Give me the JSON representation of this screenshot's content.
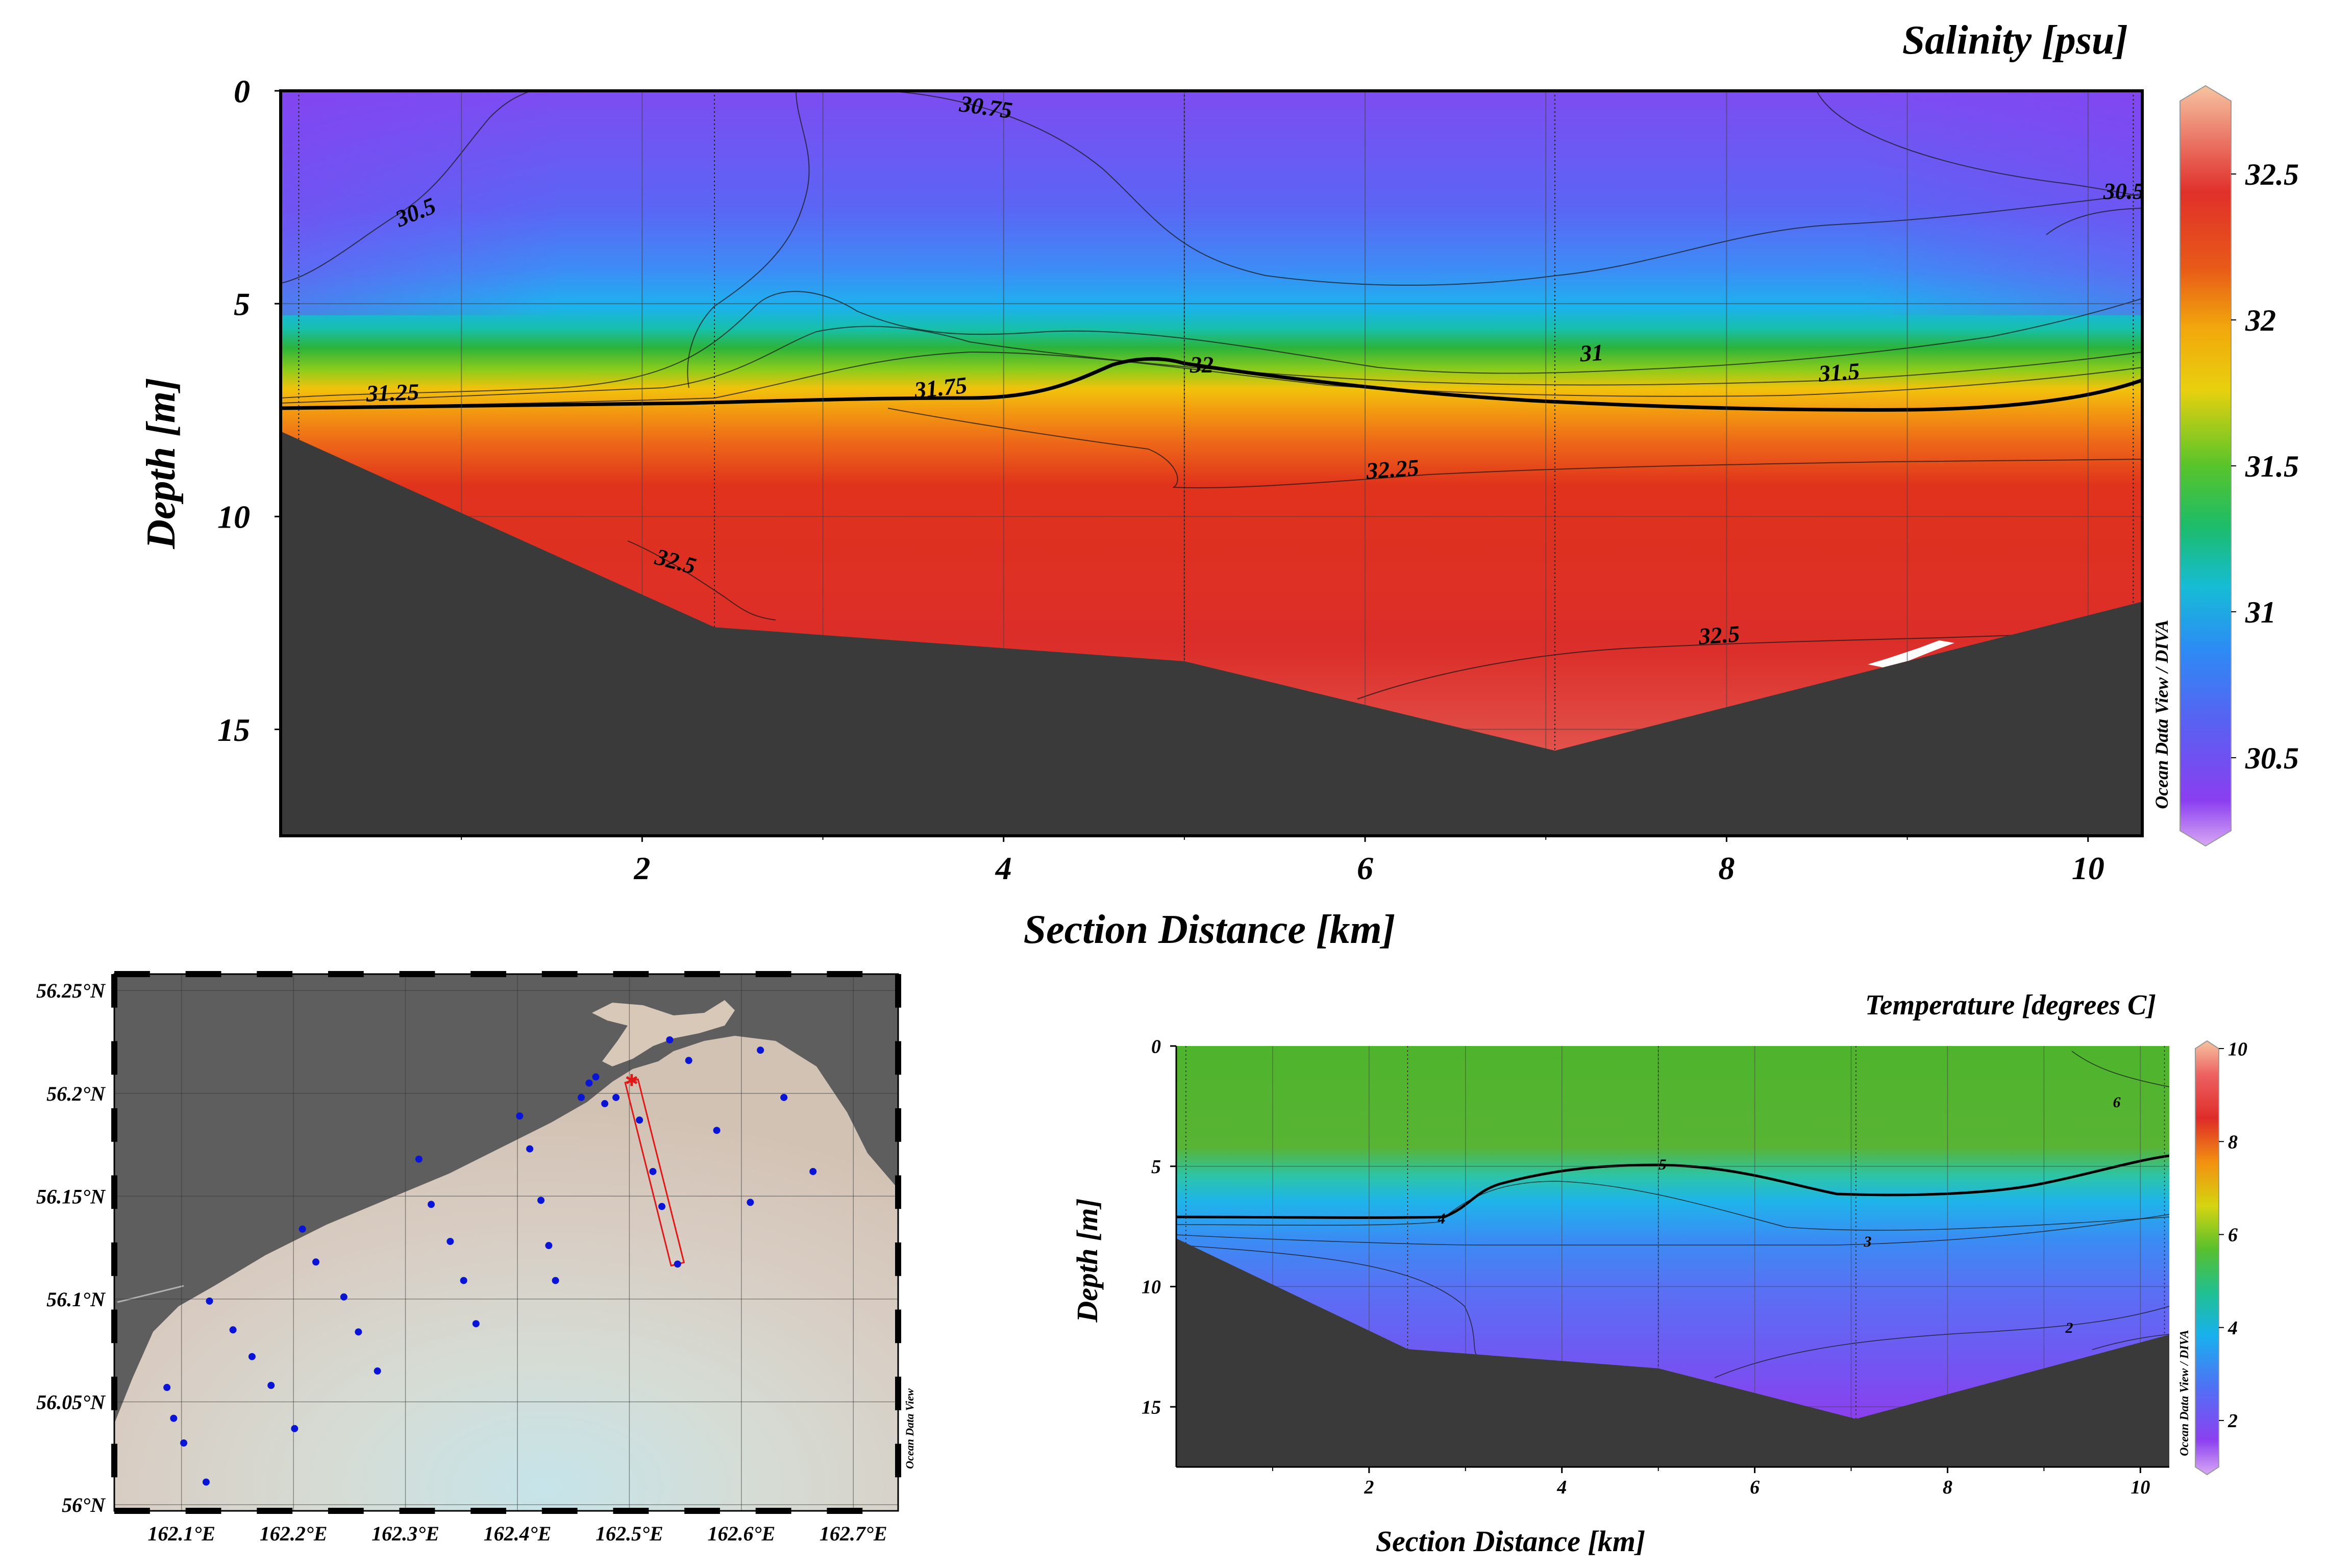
{
  "colors": {
    "seafloor": "#3a3a3a",
    "grid": "#333333",
    "stations": "#0a14d6",
    "section_track": "#e01818",
    "land": "#5e5e5e",
    "water_light": "#d8d0c8"
  },
  "watermark": "Ocean Data View / DIVA",
  "map_watermark": "Ocean Data View",
  "chart_data": [
    {
      "id": "salinity",
      "type": "heatmap",
      "title": "Salinity [psu]",
      "xlabel": "Section Distance [km]",
      "ylabel": "Depth [m]",
      "xlim": [
        0,
        10.3
      ],
      "ylim": [
        17.5,
        0
      ],
      "x_ticks": [
        "2",
        "4",
        "6",
        "8",
        "10"
      ],
      "y_ticks": [
        "0",
        "5",
        "10",
        "15"
      ],
      "colorbar_ticks": [
        "32.5",
        "32",
        "31.5",
        "31",
        "30.5"
      ],
      "colorbar_range": [
        30.25,
        32.75
      ],
      "contour_labels": [
        "30.5",
        "30.75",
        "30.5",
        "31.25",
        "31.75",
        "32",
        "31",
        "31.5",
        "32.25",
        "32.5",
        "32.5"
      ],
      "station_distances_km": [
        0.1,
        2.4,
        5.0,
        7.05,
        10.25
      ],
      "bottom_profile": {
        "x": [
          0,
          2.4,
          5.0,
          7.05,
          10.3
        ],
        "depth": [
          8.0,
          12.6,
          13.4,
          15.5,
          12.0
        ]
      }
    },
    {
      "id": "temperature",
      "type": "heatmap",
      "title": "Temperature [degrees C]",
      "xlabel": "Section Distance [km]",
      "ylabel": "Depth [m]",
      "xlim": [
        0,
        10.3
      ],
      "ylim": [
        17.5,
        0
      ],
      "x_ticks": [
        "2",
        "4",
        "6",
        "8",
        "10"
      ],
      "y_ticks": [
        "0",
        "5",
        "10",
        "15"
      ],
      "colorbar_ticks": [
        "10",
        "8",
        "6",
        "4",
        "2"
      ],
      "colorbar_range": [
        1,
        10
      ],
      "contour_labels": [
        "6",
        "5",
        "4",
        "3",
        "2"
      ],
      "station_distances_km": [
        0.1,
        2.4,
        5.0,
        7.05,
        10.25
      ],
      "bottom_profile": {
        "x": [
          0,
          2.4,
          5.0,
          7.05,
          10.3
        ],
        "depth": [
          8.0,
          12.6,
          13.4,
          15.5,
          12.0
        ]
      }
    },
    {
      "id": "station_map",
      "type": "scatter",
      "lon_ticks": [
        "162.1°E",
        "162.2°E",
        "162.3°E",
        "162.4°E",
        "162.5°E",
        "162.6°E",
        "162.7°E"
      ],
      "lat_ticks": [
        "56.25°N",
        "56.2°N",
        "56.15°N",
        "56.1°N",
        "56.05°N",
        "56°N"
      ],
      "lon_range": [
        162.04,
        162.74
      ],
      "lat_range": [
        55.997,
        56.258
      ],
      "stations": [
        {
          "lon": 162.087,
          "lat": 56.057
        },
        {
          "lon": 162.093,
          "lat": 56.042
        },
        {
          "lon": 162.102,
          "lat": 56.03
        },
        {
          "lon": 162.122,
          "lat": 56.011
        },
        {
          "lon": 162.125,
          "lat": 56.099
        },
        {
          "lon": 162.146,
          "lat": 56.085
        },
        {
          "lon": 162.163,
          "lat": 56.072
        },
        {
          "lon": 162.18,
          "lat": 56.058
        },
        {
          "lon": 162.201,
          "lat": 56.037
        },
        {
          "lon": 162.208,
          "lat": 56.134
        },
        {
          "lon": 162.22,
          "lat": 56.118
        },
        {
          "lon": 162.245,
          "lat": 56.101
        },
        {
          "lon": 162.258,
          "lat": 56.084
        },
        {
          "lon": 162.275,
          "lat": 56.065
        },
        {
          "lon": 162.312,
          "lat": 56.168
        },
        {
          "lon": 162.323,
          "lat": 56.146
        },
        {
          "lon": 162.34,
          "lat": 56.128
        },
        {
          "lon": 162.352,
          "lat": 56.109
        },
        {
          "lon": 162.363,
          "lat": 56.088
        },
        {
          "lon": 162.402,
          "lat": 56.189
        },
        {
          "lon": 162.411,
          "lat": 56.173
        },
        {
          "lon": 162.421,
          "lat": 56.148
        },
        {
          "lon": 162.428,
          "lat": 56.126
        },
        {
          "lon": 162.434,
          "lat": 56.109
        },
        {
          "lon": 162.457,
          "lat": 56.198
        },
        {
          "lon": 162.464,
          "lat": 56.205
        },
        {
          "lon": 162.47,
          "lat": 56.208
        },
        {
          "lon": 162.478,
          "lat": 56.195
        },
        {
          "lon": 162.488,
          "lat": 56.198
        },
        {
          "lon": 162.509,
          "lat": 56.187
        },
        {
          "lon": 162.521,
          "lat": 56.162
        },
        {
          "lon": 162.529,
          "lat": 56.145
        },
        {
          "lon": 162.543,
          "lat": 56.117
        },
        {
          "lon": 162.536,
          "lat": 56.226
        },
        {
          "lon": 162.553,
          "lat": 56.216
        },
        {
          "lon": 162.578,
          "lat": 56.182
        },
        {
          "lon": 162.608,
          "lat": 56.147
        },
        {
          "lon": 162.617,
          "lat": 56.221
        },
        {
          "lon": 162.638,
          "lat": 56.198
        },
        {
          "lon": 162.664,
          "lat": 56.162
        }
      ],
      "section_track": {
        "from": {
          "lon": 162.502,
          "lat": 56.206
        },
        "to": {
          "lon": 162.543,
          "lat": 56.117
        }
      }
    }
  ]
}
